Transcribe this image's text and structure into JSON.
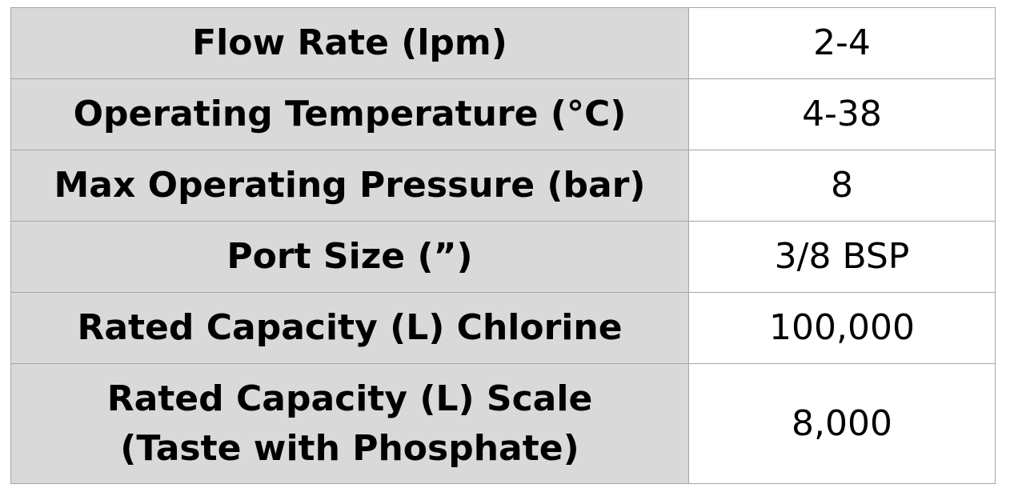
{
  "specs": {
    "rows": [
      {
        "label": "Flow Rate (lpm)",
        "value": "2-4"
      },
      {
        "label": "Operating Temperature (°C)",
        "value": "4-38"
      },
      {
        "label": "Max Operating Pressure (bar)",
        "value": "8"
      },
      {
        "label": "Port Size (”)",
        "value": "3/8 BSP"
      },
      {
        "label": "Rated Capacity (L) Chlorine",
        "value": "100,000"
      },
      {
        "label_line1": "Rated Capacity (L) Scale",
        "label_line2": "(Taste with Phosphate)",
        "value": "8,000"
      }
    ]
  },
  "colors": {
    "label_background": "#d9d9d9",
    "value_background": "#ffffff",
    "border": "#a6a6a6",
    "text": "#000000"
  }
}
